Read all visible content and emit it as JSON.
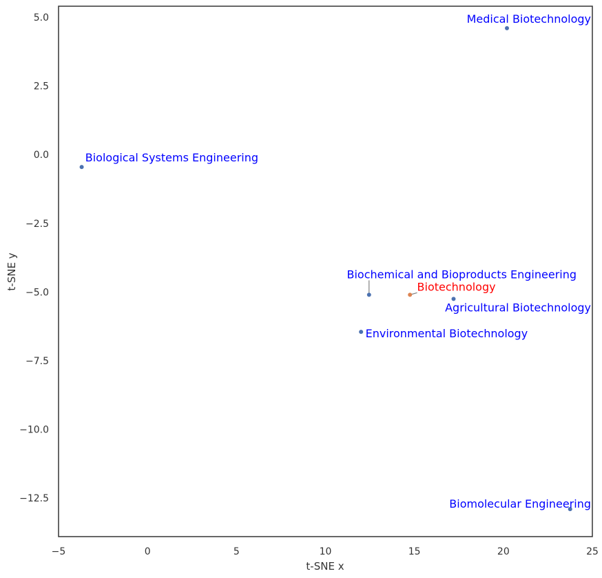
{
  "chart_data": {
    "type": "scatter",
    "xlabel": "t-SNE x",
    "ylabel": "t-SNE y",
    "xlim": [
      -5,
      25
    ],
    "ylim": [
      -13.9,
      5.4
    ],
    "x_ticks": [
      -5,
      0,
      5,
      10,
      15,
      20,
      25
    ],
    "x_tick_labels": [
      "−5",
      "0",
      "5",
      "10",
      "15",
      "20",
      "25"
    ],
    "y_ticks": [
      5.0,
      2.5,
      0.0,
      -2.5,
      -5.0,
      -7.5,
      -10.0,
      -12.5
    ],
    "y_tick_labels": [
      "5.0",
      "2.5",
      "0.0",
      "−2.5",
      "−5.0",
      "−7.5",
      "−10.0",
      "−12.5"
    ],
    "grid": false,
    "colors": {
      "point_default": "#4c72b0",
      "point_highlight": "#dd8452",
      "label_default": "#0000ff",
      "label_highlight": "#ff0000",
      "leader_line": "#808080",
      "frame": "#333333"
    },
    "points": [
      {
        "label": "Medical Biotechnology",
        "x": 20.2,
        "y": 4.6,
        "label_x": 18.5,
        "label_y": 4.8,
        "highlight": false
      },
      {
        "label": "Biological Systems Engineering",
        "x": -3.7,
        "y": -0.45,
        "label_x": -3.5,
        "label_y": -0.25,
        "highlight": false
      },
      {
        "label": "Biochemical and Bioproducts Engineering",
        "x": 12.45,
        "y": -5.1,
        "label_x": 11.2,
        "label_y": -4.5,
        "highlight": false
      },
      {
        "label": "Biotechnology",
        "x": 14.75,
        "y": -5.1,
        "label_x": 15.15,
        "label_y": -4.95,
        "highlight": true
      },
      {
        "label": "Agricultural Biotechnology",
        "x": 17.2,
        "y": -5.25,
        "label_x": 17.4,
        "label_y": -5.7,
        "highlight": false
      },
      {
        "label": "Environmental Biotechnology",
        "x": 12.0,
        "y": -6.45,
        "label_x": 12.25,
        "label_y": -6.65,
        "highlight": false
      },
      {
        "label": "Biomolecular Engineering",
        "x": 23.75,
        "y": -12.9,
        "label_x": 17.6,
        "label_y": -12.85,
        "highlight": false
      }
    ]
  }
}
